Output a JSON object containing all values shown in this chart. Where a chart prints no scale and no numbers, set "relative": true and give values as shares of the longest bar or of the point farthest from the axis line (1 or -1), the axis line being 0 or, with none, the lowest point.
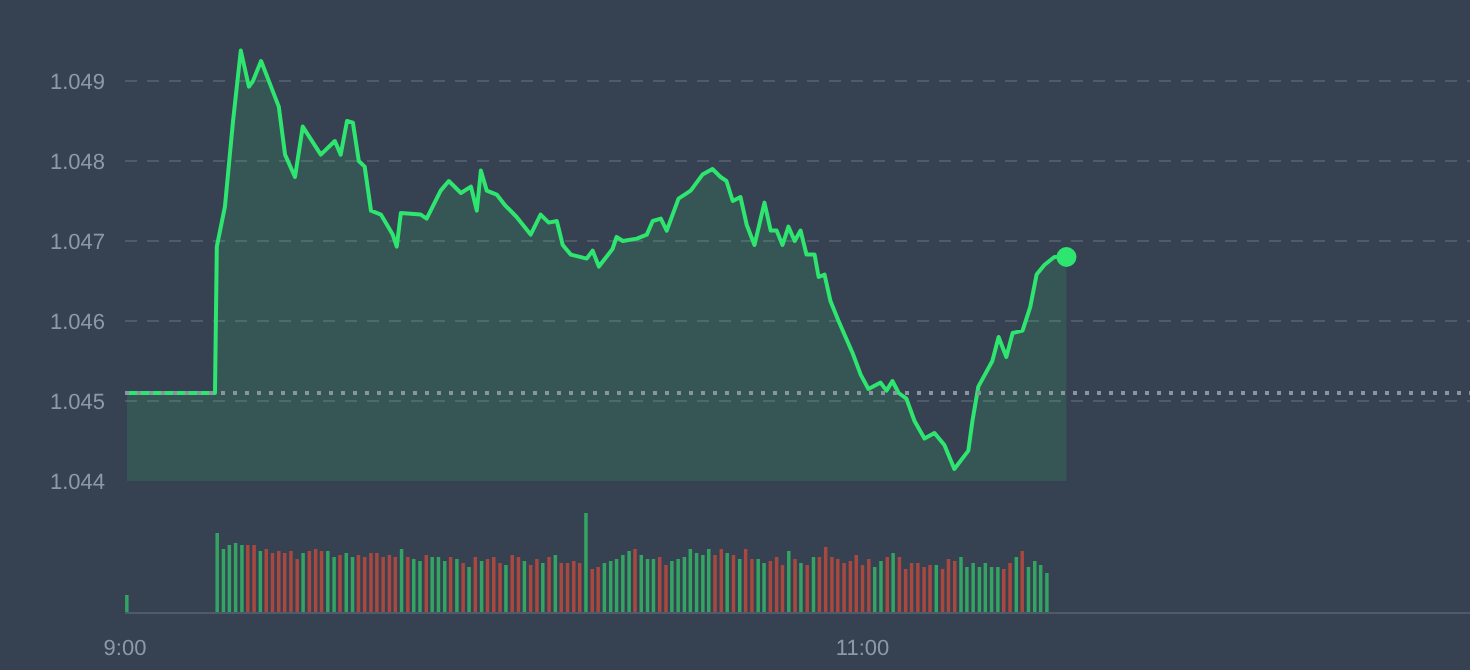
{
  "chart_data": [
    {
      "type": "area",
      "tick_labels": "y",
      "xlim": [
        9,
        12.65
      ],
      "ylim": [
        1.044,
        1.05
      ],
      "yticks": [
        1.044,
        1.045,
        1.046,
        1.047,
        1.048,
        1.049
      ],
      "grid": "y",
      "ref_lines": [
        {
          "axis": "y",
          "value": 1.0451,
          "color": "#8a93a0",
          "line_style": "dotted"
        }
      ],
      "series": [
        {
          "type": "area",
          "color": "#2ee56f",
          "x": [
            9.005,
            9.238,
            9.244,
            9.249,
            9.271,
            9.293,
            9.314,
            9.336,
            9.347,
            9.369,
            9.396,
            9.417,
            9.434,
            9.461,
            9.482,
            9.531,
            9.569,
            9.585,
            9.602,
            9.618,
            9.634,
            9.65,
            9.667,
            9.694,
            9.726,
            9.737,
            9.748,
            9.802,
            9.818,
            9.856,
            9.878,
            9.911,
            9.938,
            9.954,
            9.965,
            9.981,
            10.008,
            10.03,
            10.062,
            10.1,
            10.127,
            10.149,
            10.171,
            10.187,
            10.209,
            10.252,
            10.268,
            10.285,
            10.322,
            10.333,
            10.35,
            10.388,
            10.415,
            10.431,
            10.453,
            10.469,
            10.501,
            10.534,
            10.566,
            10.593,
            10.615,
            10.631,
            10.648,
            10.669,
            10.686,
            10.707,
            10.734,
            10.751,
            10.767,
            10.783,
            10.799,
            10.816,
            10.832,
            10.848,
            10.87,
            10.881,
            10.897,
            10.913,
            10.935,
            10.973,
            10.995,
            11.016,
            11.049,
            11.065,
            11.081,
            11.098,
            11.119,
            11.141,
            11.168,
            11.195,
            11.222,
            11.249,
            11.287,
            11.298,
            11.314,
            11.352,
            11.369,
            11.39,
            11.407,
            11.434,
            11.455,
            11.472,
            11.493,
            11.52,
            11.553
          ],
          "values": [
            1.0451,
            1.0451,
            1.0451,
            1.04693,
            1.04743,
            1.0485,
            1.04938,
            1.04893,
            1.049,
            1.04925,
            1.04893,
            1.04868,
            1.04808,
            1.0478,
            1.04843,
            1.04808,
            1.04825,
            1.04808,
            1.0485,
            1.04848,
            1.048,
            1.04793,
            1.04738,
            1.04733,
            1.04708,
            1.04693,
            1.04735,
            1.04733,
            1.04728,
            1.04763,
            1.04775,
            1.0476,
            1.04768,
            1.04738,
            1.04788,
            1.04763,
            1.04758,
            1.04745,
            1.0473,
            1.04708,
            1.04733,
            1.04723,
            1.04725,
            1.04695,
            1.04683,
            1.04678,
            1.04688,
            1.04668,
            1.0469,
            1.04705,
            1.047,
            1.04703,
            1.04708,
            1.04725,
            1.04728,
            1.04713,
            1.04753,
            1.04763,
            1.04783,
            1.0479,
            1.0478,
            1.04775,
            1.0475,
            1.04755,
            1.0472,
            1.04695,
            1.04748,
            1.04713,
            1.04713,
            1.04695,
            1.04718,
            1.047,
            1.04713,
            1.04683,
            1.04683,
            1.04655,
            1.04658,
            1.04625,
            1.046,
            1.0456,
            1.04533,
            1.04515,
            1.04523,
            1.04513,
            1.04525,
            1.0451,
            1.04503,
            1.04475,
            1.04453,
            1.0446,
            1.04445,
            1.04415,
            1.04438,
            1.04475,
            1.04518,
            1.0455,
            1.0458,
            1.04555,
            1.04585,
            1.04588,
            1.04618,
            1.04658,
            1.0467,
            1.0468,
            1.0468
          ]
        },
        {
          "type": "scatter",
          "marker": "circle",
          "color": "#2ee56f",
          "x": [
            11.553
          ],
          "values": [
            1.0468
          ]
        }
      ]
    },
    {
      "type": "bar",
      "relative": true,
      "tick_labels": "x",
      "xlim": [
        9,
        12.65
      ],
      "xticks": [
        {
          "value": 9,
          "label": "9:00"
        },
        {
          "value": 11,
          "label": "11:00"
        }
      ],
      "x": [
        9.005,
        9.25,
        9.267,
        9.283,
        9.3,
        9.317,
        9.333,
        9.35,
        9.367,
        9.383,
        9.4,
        9.417,
        9.433,
        9.45,
        9.467,
        9.483,
        9.5,
        9.517,
        9.533,
        9.55,
        9.567,
        9.583,
        9.6,
        9.617,
        9.633,
        9.65,
        9.667,
        9.683,
        9.7,
        9.717,
        9.733,
        9.75,
        9.767,
        9.783,
        9.8,
        9.817,
        9.833,
        9.85,
        9.867,
        9.883,
        9.9,
        9.917,
        9.933,
        9.95,
        9.967,
        9.983,
        10.0,
        10.017,
        10.033,
        10.05,
        10.067,
        10.083,
        10.1,
        10.117,
        10.133,
        10.15,
        10.167,
        10.183,
        10.2,
        10.217,
        10.233,
        10.25,
        10.267,
        10.283,
        10.3,
        10.317,
        10.333,
        10.35,
        10.367,
        10.383,
        10.4,
        10.417,
        10.433,
        10.45,
        10.467,
        10.483,
        10.5,
        10.517,
        10.533,
        10.55,
        10.567,
        10.583,
        10.6,
        10.617,
        10.633,
        10.65,
        10.667,
        10.683,
        10.7,
        10.717,
        10.733,
        10.75,
        10.767,
        10.783,
        10.8,
        10.817,
        10.833,
        10.85,
        10.867,
        10.883,
        10.9,
        10.917,
        10.933,
        10.95,
        10.967,
        10.983,
        11.0,
        11.017,
        11.033,
        11.05,
        11.067,
        11.083,
        11.1,
        11.117,
        11.133,
        11.15,
        11.167,
        11.183,
        11.2,
        11.217,
        11.233,
        11.25,
        11.267,
        11.283,
        11.3,
        11.317,
        11.333,
        11.35,
        11.367,
        11.383,
        11.4,
        11.417,
        11.433,
        11.45,
        11.467,
        11.483,
        11.5
      ],
      "values": [
        0.18,
        0.8,
        0.64,
        0.68,
        0.7,
        0.68,
        0.68,
        0.68,
        0.62,
        0.64,
        0.6,
        0.62,
        0.6,
        0.62,
        0.54,
        0.6,
        0.62,
        0.64,
        0.62,
        0.62,
        0.56,
        0.58,
        0.6,
        0.56,
        0.58,
        0.56,
        0.6,
        0.6,
        0.56,
        0.58,
        0.56,
        0.64,
        0.56,
        0.54,
        0.52,
        0.58,
        0.56,
        0.56,
        0.52,
        0.56,
        0.54,
        0.5,
        0.46,
        0.56,
        0.52,
        0.54,
        0.56,
        0.5,
        0.48,
        0.58,
        0.56,
        0.52,
        0.48,
        0.54,
        0.5,
        0.56,
        0.58,
        0.5,
        0.5,
        0.52,
        0.5,
        1,
        0.44,
        0.46,
        0.5,
        0.52,
        0.54,
        0.58,
        0.62,
        0.64,
        0.58,
        0.54,
        0.54,
        0.56,
        0.48,
        0.52,
        0.54,
        0.56,
        0.64,
        0.6,
        0.58,
        0.64,
        0.58,
        0.64,
        0.6,
        0.58,
        0.54,
        0.64,
        0.54,
        0.54,
        0.5,
        0.52,
        0.56,
        0.48,
        0.62,
        0.54,
        0.5,
        0.48,
        0.56,
        0.56,
        0.66,
        0.56,
        0.54,
        0.5,
        0.52,
        0.58,
        0.48,
        0.54,
        0.46,
        0.52,
        0.56,
        0.6,
        0.56,
        0.44,
        0.5,
        0.5,
        0.46,
        0.48,
        0.48,
        0.44,
        0.54,
        0.52,
        0.56,
        0.46,
        0.5,
        0.46,
        0.5,
        0.46,
        0.46,
        0.44,
        0.5,
        0.56,
        0.62,
        0.46,
        0.52,
        0.48,
        0.4
      ],
      "colors": [
        "#34a463",
        "#34a463",
        "#34a463",
        "#34a463",
        "#34a463",
        "#34a463",
        "#a9483f",
        "#a9483f",
        "#34a463",
        "#a9483f",
        "#a9483f",
        "#a9483f",
        "#a9483f",
        "#a9483f",
        "#a9483f",
        "#34a463",
        "#a9483f",
        "#a9483f",
        "#a9483f",
        "#34a463",
        "#34a463",
        "#a9483f",
        "#34a463",
        "#34a463",
        "#a9483f",
        "#a9483f",
        "#a9483f",
        "#a9483f",
        "#a9483f",
        "#a9483f",
        "#a9483f",
        "#34a463",
        "#a9483f",
        "#34a463",
        "#34a463",
        "#a9483f",
        "#34a463",
        "#34a463",
        "#34a463",
        "#a9483f",
        "#34a463",
        "#a9483f",
        "#34a463",
        "#a9483f",
        "#34a463",
        "#a9483f",
        "#a9483f",
        "#a9483f",
        "#34a463",
        "#a9483f",
        "#a9483f",
        "#34a463",
        "#a9483f",
        "#a9483f",
        "#34a463",
        "#a9483f",
        "#34a463",
        "#a9483f",
        "#a9483f",
        "#a9483f",
        "#a9483f",
        "#34a463",
        "#a9483f",
        "#a9483f",
        "#34a463",
        "#34a463",
        "#34a463",
        "#34a463",
        "#34a463",
        "#a9483f",
        "#34a463",
        "#34a463",
        "#34a463",
        "#a9483f",
        "#a9483f",
        "#34a463",
        "#34a463",
        "#34a463",
        "#34a463",
        "#34a463",
        "#34a463",
        "#34a463",
        "#a9483f",
        "#a9483f",
        "#34a463",
        "#a9483f",
        "#34a463",
        "#a9483f",
        "#a9483f",
        "#34a463",
        "#34a463",
        "#a9483f",
        "#a9483f",
        "#a9483f",
        "#34a463",
        "#a9483f",
        "#34a463",
        "#a9483f",
        "#34a463",
        "#a9483f",
        "#a9483f",
        "#a9483f",
        "#a9483f",
        "#a9483f",
        "#a9483f",
        "#a9483f",
        "#a9483f",
        "#a9483f",
        "#34a463",
        "#34a463",
        "#a9483f",
        "#34a463",
        "#a9483f",
        "#a9483f",
        "#a9483f",
        "#a9483f",
        "#a9483f",
        "#a9483f",
        "#34a463",
        "#a9483f",
        "#a9483f",
        "#a9483f",
        "#34a463",
        "#34a463",
        "#34a463",
        "#34a463",
        "#34a463",
        "#34a463",
        "#34a463",
        "#a9483f",
        "#a9483f",
        "#34a463",
        "#a9483f",
        "#34a463",
        "#34a463",
        "#34a463",
        "#34a463"
      ]
    }
  ]
}
